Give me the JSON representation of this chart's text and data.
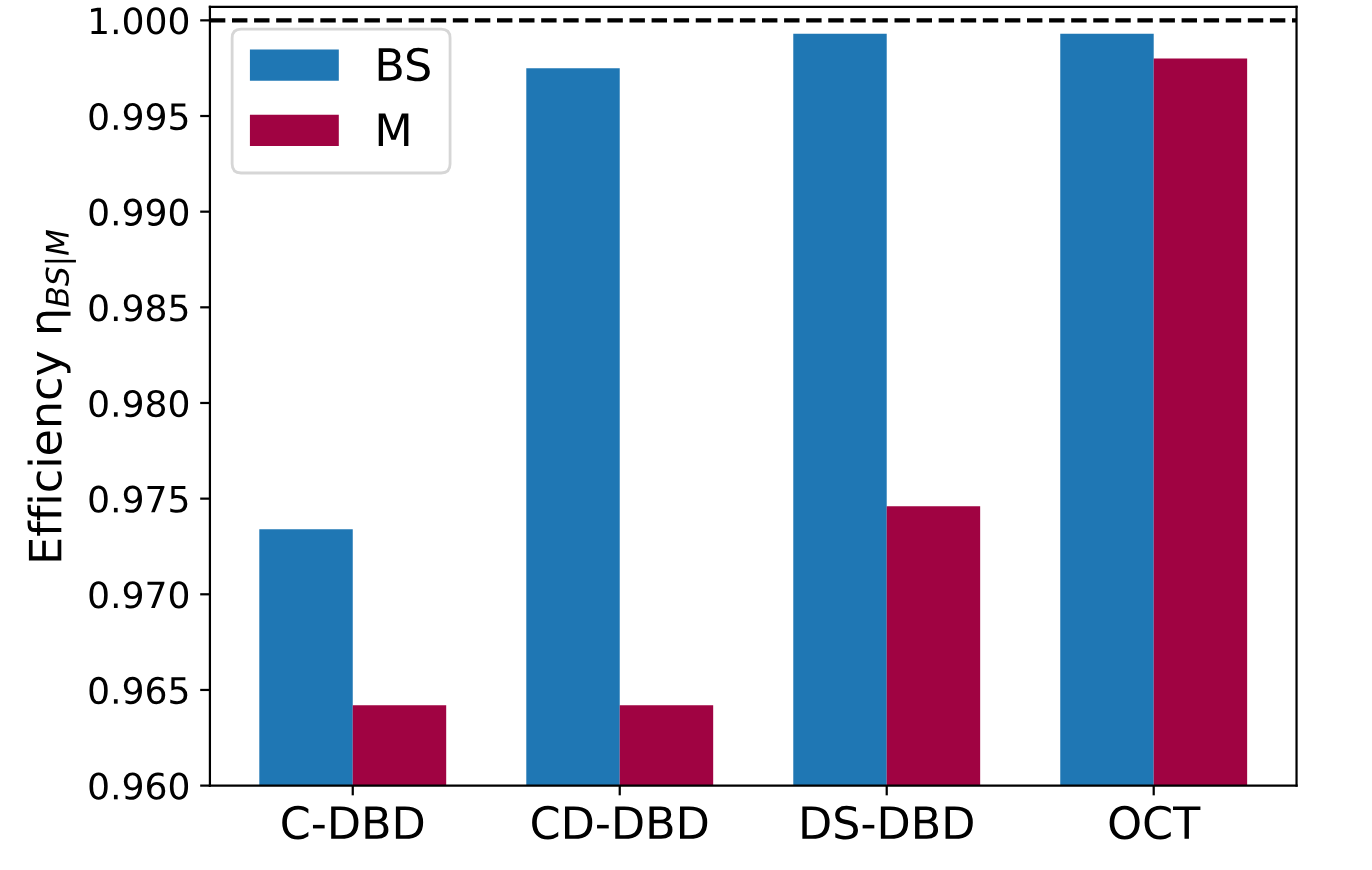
{
  "chart_data": {
    "type": "bar",
    "ylabel": "Efficiency η$_{BS|M}$",
    "categories": [
      "C-DBD",
      "CD-DBD",
      "DS-DBD",
      "OCT"
    ],
    "series": [
      {
        "name": "BS",
        "color": "#1f77b4",
        "values": [
          0.9734,
          0.9975,
          0.9993,
          0.9993
        ]
      },
      {
        "name": "M",
        "color": "#a00342",
        "values": [
          0.9642,
          0.9642,
          0.9746,
          0.998
        ]
      }
    ],
    "ylim": [
      0.96,
      1.0007
    ],
    "yticks": [
      {
        "value": 0.96,
        "label": "0.960"
      },
      {
        "value": 0.965,
        "label": "0.965"
      },
      {
        "value": 0.97,
        "label": "0.970"
      },
      {
        "value": 0.975,
        "label": "0.975"
      },
      {
        "value": 0.98,
        "label": "0.980"
      },
      {
        "value": 0.985,
        "label": "0.985"
      },
      {
        "value": 0.99,
        "label": "0.990"
      },
      {
        "value": 0.995,
        "label": "0.995"
      },
      {
        "value": 1.0,
        "label": "1.000"
      }
    ],
    "ref_lines": [
      {
        "axis": "y",
        "value": 1.0,
        "color": "#000000",
        "line_style": "dashed"
      }
    ],
    "legend": "top left",
    "grid": false
  }
}
